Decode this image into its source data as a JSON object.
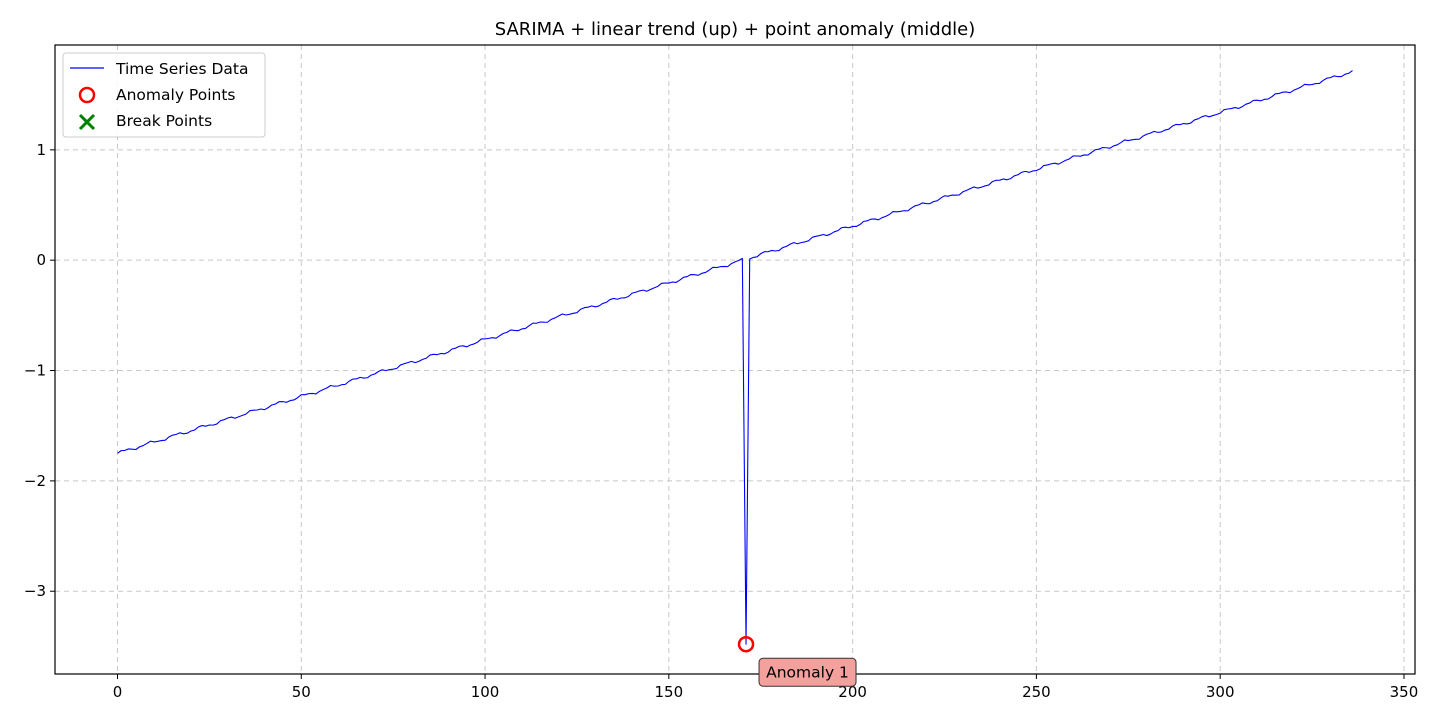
{
  "chart_data": {
    "type": "line",
    "title": "SARIMA + linear trend (up) + point anomaly (middle)",
    "xlabel": "",
    "ylabel": "",
    "xlim": [
      -17,
      353
    ],
    "ylim": [
      -3.75,
      1.95
    ],
    "x_ticks": [
      0,
      50,
      100,
      150,
      200,
      250,
      300,
      350
    ],
    "y_ticks": [
      -3,
      -2,
      -1,
      0,
      1
    ],
    "grid": true,
    "legend_position": "top-left",
    "series": [
      {
        "name": "Time Series Data",
        "kind": "line",
        "color": "#0000ff",
        "start": [
          0,
          -1.75
        ],
        "end": [
          336,
          1.71
        ],
        "n_points": 337,
        "anomaly_index": 171,
        "anomaly_value": -3.48
      },
      {
        "name": "Anomaly Points",
        "kind": "marker-circle",
        "color": "#ff0000",
        "points": [
          [
            171,
            -3.48
          ]
        ]
      },
      {
        "name": "Break Points",
        "kind": "marker-x",
        "color": "#008000",
        "points": []
      }
    ],
    "annotations": [
      {
        "text": "Anomaly 1",
        "x": 171,
        "y": -3.48,
        "bg": "#f4a09c"
      }
    ]
  }
}
